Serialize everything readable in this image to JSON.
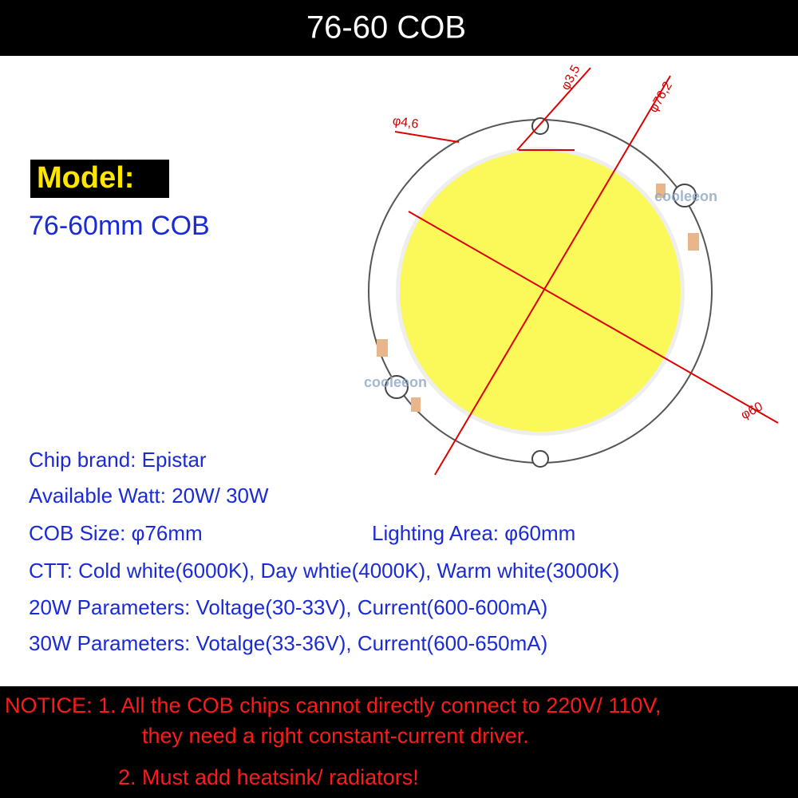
{
  "header": {
    "title": "76-60 COB"
  },
  "model": {
    "label": "Model:",
    "value": "76-60mm COB"
  },
  "diagram": {
    "hole_small": "φ3,5",
    "outer_diameter": "φ76,2",
    "hole_large": "φ4,6",
    "light_diameter": "φ60",
    "watermark": "cooleeon"
  },
  "specs": {
    "chip_brand": "Chip brand: Epistar",
    "watt": "Available Watt: 20W/ 30W",
    "cob_size": "COB Size: φ76mm",
    "lighting_area": "Lighting Area: φ60mm",
    "ctt": "CTT: Cold white(6000K), Day whtie(4000K), Warm white(3000K)",
    "params_20w": "20W Parameters: Voltage(30-33V), Current(600-600mA)",
    "params_30w": "30W Parameters: Votalge(33-36V), Current(600-650mA)"
  },
  "notice": {
    "line1": "NOTICE: 1. All the COB chips cannot directly connect to 220V/ 110V,",
    "line2": "they need  a right constant-current driver.",
    "line3": "2. Must add  heatsink/ radiators!"
  }
}
